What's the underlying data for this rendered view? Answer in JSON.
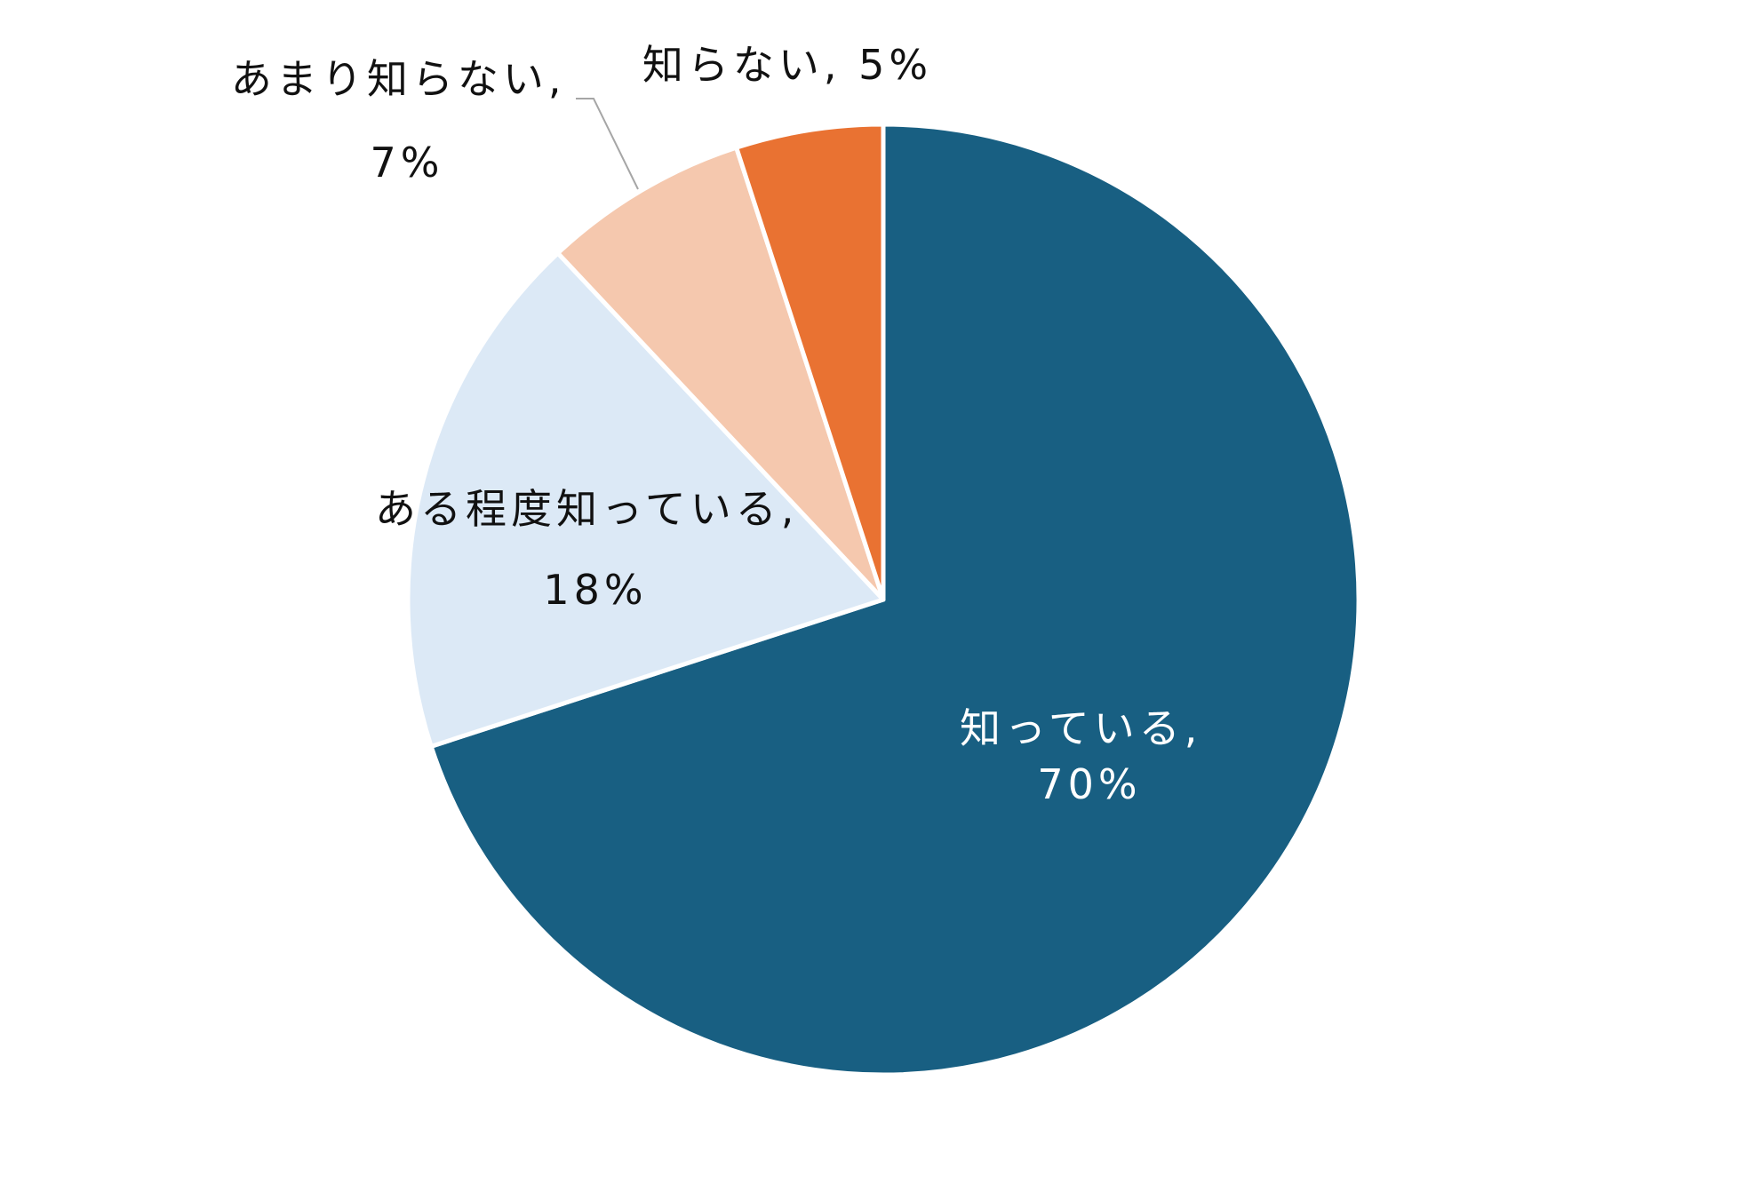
{
  "chart_data": {
    "type": "pie",
    "categories": [
      "知っている",
      "ある程度知っている",
      "あまり知らない",
      "知らない"
    ],
    "values": [
      70,
      18,
      7,
      5
    ],
    "value_labels": [
      "70%",
      "18%",
      "7%",
      "5%"
    ],
    "label_separator": ", ",
    "colors": [
      "#185f82",
      "#dce9f6",
      "#f5c8ae",
      "#e97232"
    ]
  }
}
